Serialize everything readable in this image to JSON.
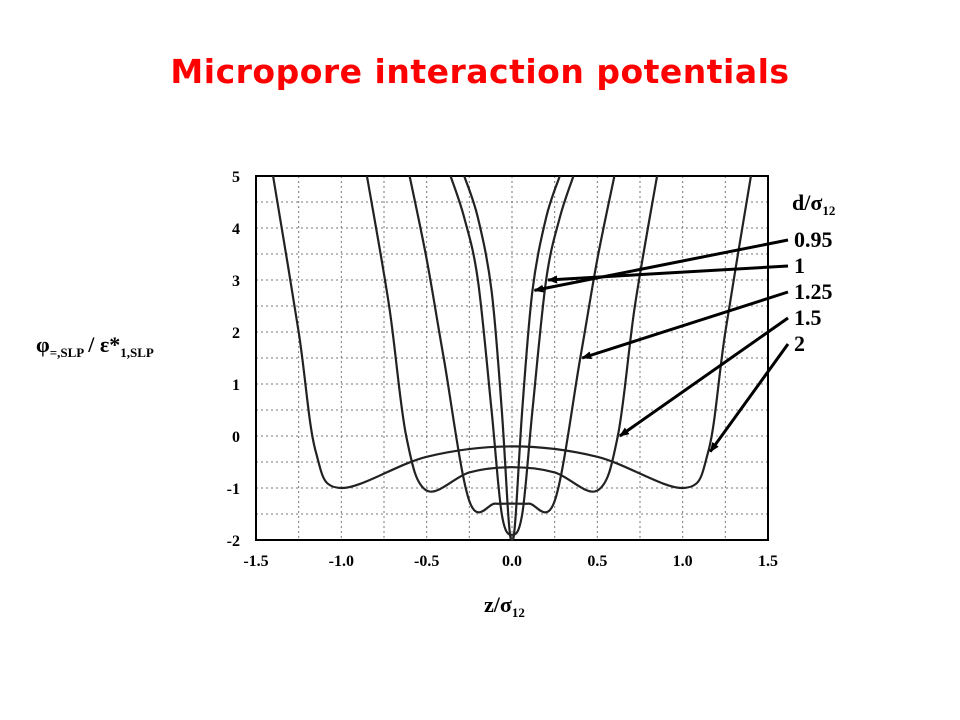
{
  "slide": {
    "title": "Micropore interaction potentials"
  },
  "chart_data": {
    "type": "line",
    "title": "",
    "xlabel": {
      "main": "z/σ",
      "sub": "12"
    },
    "ylabel": {
      "main": "φ",
      "sub1": "=,SLP",
      "mid": "/ ε*",
      "sub2": "1,SLP"
    },
    "xlim": [
      -1.5,
      1.5
    ],
    "ylim": [
      -2,
      5
    ],
    "x_ticks": [
      "-1.5",
      "-1.0",
      "-0.5",
      "0.0",
      "0.5",
      "1.0",
      "1.5"
    ],
    "y_ticks": [
      "5",
      "4",
      "3",
      "2",
      "1",
      "0",
      "-1",
      "-2"
    ],
    "grid": true,
    "legend": {
      "title_main": "d/σ",
      "title_sub": "12",
      "position": "right",
      "entries": [
        "0.95",
        "1",
        "1.25",
        "1.5",
        "2"
      ]
    },
    "series": [
      {
        "name": "0.95",
        "x": [
          -0.28,
          -0.2,
          -0.12,
          -0.06,
          -0.02,
          0.0,
          0.02,
          0.06,
          0.12,
          0.2,
          0.28
        ],
        "y": [
          5,
          4.2,
          2.8,
          0.5,
          -1.6,
          -2.0,
          -1.6,
          0.5,
          2.8,
          4.2,
          5
        ]
      },
      {
        "name": "1",
        "x": [
          -0.36,
          -0.28,
          -0.2,
          -0.12,
          -0.06,
          0.0,
          0.06,
          0.12,
          0.2,
          0.28,
          0.36
        ],
        "y": [
          5,
          4.2,
          3.0,
          0.5,
          -1.5,
          -1.9,
          -1.5,
          0.5,
          3.0,
          4.2,
          5
        ]
      },
      {
        "name": "1.25",
        "x": [
          -0.6,
          -0.5,
          -0.4,
          -0.25,
          -0.1,
          0.0,
          0.1,
          0.25,
          0.4,
          0.5,
          0.6
        ],
        "y": [
          5,
          3.4,
          1.5,
          -1.25,
          -1.3,
          -1.3,
          -1.3,
          -1.25,
          1.5,
          3.4,
          5
        ]
      },
      {
        "name": "1.5",
        "x": [
          -0.85,
          -0.72,
          -0.62,
          -0.5,
          -0.25,
          0.0,
          0.25,
          0.5,
          0.62,
          0.72,
          0.85
        ],
        "y": [
          5,
          2.5,
          0.0,
          -1.05,
          -0.7,
          -0.6,
          -0.7,
          -1.05,
          0.0,
          2.5,
          5
        ]
      },
      {
        "name": "2",
        "x": [
          -1.4,
          -1.25,
          -1.15,
          -1.0,
          -0.5,
          0.0,
          0.5,
          1.0,
          1.15,
          1.25,
          1.4
        ],
        "y": [
          5,
          2.0,
          -0.3,
          -1.0,
          -0.4,
          -0.2,
          -0.4,
          -1.0,
          -0.3,
          2.0,
          5
        ]
      }
    ]
  }
}
